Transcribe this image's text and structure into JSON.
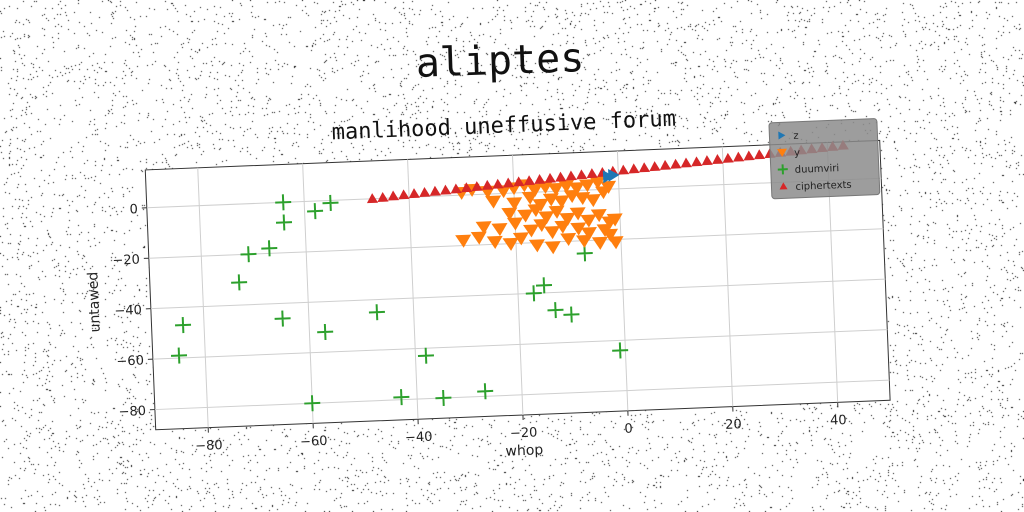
{
  "figure": {
    "suptitle": "aliptes"
  },
  "chart_data": {
    "type": "scatter",
    "title": "manlihood uneffusive forum",
    "xlabel": "whop",
    "ylabel": "untawed",
    "xlim": [
      -90,
      50
    ],
    "ylim": [
      -88,
      15
    ],
    "xticks": [
      -80,
      -60,
      -40,
      -20,
      0,
      20,
      40
    ],
    "yticks": [
      0,
      -20,
      -40,
      -60,
      -80
    ],
    "grid": true,
    "legend_position": "top-right",
    "series": [
      {
        "name": "z",
        "marker": "triangle-right",
        "color": "#1f77b4",
        "points": [
          [
            -2,
            5
          ],
          [
            -1,
            5.5
          ]
        ]
      },
      {
        "name": "y",
        "marker": "triangle-down",
        "color": "#ff7f0e",
        "points": [
          [
            -30,
            1
          ],
          [
            -28,
            2
          ],
          [
            -25,
            1
          ],
          [
            -22,
            1
          ],
          [
            -20,
            2
          ],
          [
            -18,
            3
          ],
          [
            -16,
            1
          ],
          [
            -14,
            2
          ],
          [
            -12,
            1
          ],
          [
            -10,
            2
          ],
          [
            -8,
            1
          ],
          [
            -6,
            2
          ],
          [
            -4,
            3
          ],
          [
            -2,
            1
          ],
          [
            -24,
            -3
          ],
          [
            -20,
            -4
          ],
          [
            -17,
            -2
          ],
          [
            -15,
            -5
          ],
          [
            -13,
            -3
          ],
          [
            -11,
            -4
          ],
          [
            -9,
            -2
          ],
          [
            -7,
            -3
          ],
          [
            -5,
            -4
          ],
          [
            -3,
            -1
          ],
          [
            -21,
            -8
          ],
          [
            -18,
            -9
          ],
          [
            -16,
            -7
          ],
          [
            -14,
            -10
          ],
          [
            -12,
            -8
          ],
          [
            -10,
            -11
          ],
          [
            -8,
            -9
          ],
          [
            -6,
            -12
          ],
          [
            -4,
            -10
          ],
          [
            -2,
            -13
          ],
          [
            -26,
            -13
          ],
          [
            -23,
            -14
          ],
          [
            -20,
            -12
          ],
          [
            -17,
            -15
          ],
          [
            -15,
            -13
          ],
          [
            -13,
            -16
          ],
          [
            -11,
            -14
          ],
          [
            -8,
            -15
          ],
          [
            -6,
            -17
          ],
          [
            -3,
            -16
          ],
          [
            -1,
            -12
          ],
          [
            -30,
            -18
          ],
          [
            -27,
            -17
          ],
          [
            -24,
            -19
          ],
          [
            -21,
            -20
          ],
          [
            -19,
            -18
          ],
          [
            -16,
            -21
          ],
          [
            -13,
            -22
          ],
          [
            -10,
            -19
          ],
          [
            -7,
            -20
          ],
          [
            -4,
            -21
          ],
          [
            -2,
            -18
          ],
          [
            -1,
            -21
          ]
        ]
      },
      {
        "name": "duumviri",
        "marker": "plus",
        "color": "#2ca02c",
        "points": [
          [
            -64,
            0
          ],
          [
            -58,
            -4
          ],
          [
            -55,
            -1
          ],
          [
            -64,
            -8
          ],
          [
            -67,
            -18
          ],
          [
            -71,
            -20
          ],
          [
            -73,
            -31
          ],
          [
            -84,
            -47
          ],
          [
            -65,
            -46
          ],
          [
            -57,
            -52
          ],
          [
            -47,
            -45
          ],
          [
            -85,
            -59
          ],
          [
            -60,
            -80
          ],
          [
            -43,
            -79
          ],
          [
            -38,
            -63
          ],
          [
            -35,
            -80
          ],
          [
            -27,
            -78
          ],
          [
            -17,
            -40
          ],
          [
            -15,
            -37
          ],
          [
            -13,
            -47
          ],
          [
            -10,
            -49
          ],
          [
            -7,
            -25
          ],
          [
            -1,
            -64
          ]
        ]
      },
      {
        "name": "ciphertexts",
        "marker": "triangle-up",
        "color": "#d62728",
        "points": [
          [
            -47,
            0
          ],
          [
            -45,
            0.3
          ],
          [
            -43,
            0.7
          ],
          [
            -41,
            1
          ],
          [
            -39,
            1.3
          ],
          [
            -37,
            1.6
          ],
          [
            -35,
            1.9
          ],
          [
            -33,
            2.2
          ],
          [
            -31,
            2.5
          ],
          [
            -29,
            2.8
          ],
          [
            -27,
            3.1
          ],
          [
            -25,
            3.4
          ],
          [
            -23,
            3.7
          ],
          [
            -21,
            4
          ],
          [
            -19,
            4.3
          ],
          [
            -17,
            4.6
          ],
          [
            -15,
            4.9
          ],
          [
            -13,
            5.2
          ],
          [
            -11,
            5.5
          ],
          [
            -9,
            5.8
          ],
          [
            -7,
            6.1
          ],
          [
            -5,
            6.4
          ],
          [
            -3,
            6.7
          ],
          [
            -1,
            7
          ],
          [
            1,
            7.3
          ],
          [
            3,
            7.6
          ],
          [
            5,
            7.9
          ],
          [
            7,
            8.2
          ],
          [
            9,
            8.5
          ],
          [
            11,
            8.8
          ],
          [
            13,
            9.1
          ],
          [
            15,
            9.4
          ],
          [
            17,
            9.7
          ],
          [
            19,
            10
          ],
          [
            21,
            10.3
          ],
          [
            23,
            10.6
          ],
          [
            25,
            10.9
          ],
          [
            27,
            11.2
          ],
          [
            29,
            11.5
          ],
          [
            31,
            11.8
          ],
          [
            33,
            12.1
          ],
          [
            35,
            12.4
          ],
          [
            37,
            12.7
          ],
          [
            39,
            13
          ],
          [
            41,
            13.3
          ],
          [
            43,
            13.6
          ]
        ]
      }
    ]
  }
}
